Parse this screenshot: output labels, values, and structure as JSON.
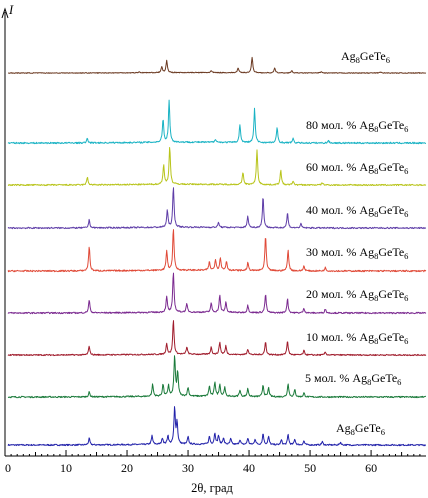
{
  "chart_data": {
    "type": "line",
    "title": "",
    "xlabel": "2θ, град",
    "ylabel": "I",
    "xlim": [
      0,
      69
    ],
    "x_ticks": [
      0,
      10,
      20,
      30,
      40,
      50,
      60
    ],
    "grid": false,
    "series": [
      {
        "name": "Ag8GeTe6",
        "label_text": "Ag",
        "label_parts": [
          "Ag",
          "8",
          "GeTe",
          "6"
        ],
        "color": "#2222aa",
        "peaks": [
          [
            13.8,
            0.16
          ],
          [
            24.1,
            0.22
          ],
          [
            25.8,
            0.16
          ],
          [
            26.7,
            0.22
          ],
          [
            27.8,
            0.9
          ],
          [
            28.2,
            0.55
          ],
          [
            30.0,
            0.18
          ],
          [
            33.5,
            0.2
          ],
          [
            34.4,
            0.28
          ],
          [
            35.0,
            0.22
          ],
          [
            35.8,
            0.16
          ],
          [
            37.0,
            0.14
          ],
          [
            38.5,
            0.12
          ],
          [
            39.8,
            0.16
          ],
          [
            41.0,
            0.14
          ],
          [
            42.3,
            0.28
          ],
          [
            43.2,
            0.2
          ],
          [
            45.3,
            0.12
          ],
          [
            46.4,
            0.26
          ],
          [
            47.5,
            0.14
          ],
          [
            49.0,
            0.1
          ],
          [
            52.0,
            0.08
          ],
          [
            55.0,
            0.07
          ]
        ]
      },
      {
        "name": "5 мол. % Ag8GeTe6",
        "label_parts": [
          "5 мол. % Ag",
          "8",
          "GeTe",
          "6"
        ],
        "color": "#1a7a3a",
        "peaks": [
          [
            13.8,
            0.12
          ],
          [
            24.2,
            0.3
          ],
          [
            25.9,
            0.3
          ],
          [
            26.8,
            0.28
          ],
          [
            27.8,
            1.0
          ],
          [
            28.3,
            0.6
          ],
          [
            30.0,
            0.22
          ],
          [
            33.5,
            0.26
          ],
          [
            34.4,
            0.36
          ],
          [
            35.2,
            0.3
          ],
          [
            36.0,
            0.22
          ],
          [
            38.5,
            0.16
          ],
          [
            39.8,
            0.2
          ],
          [
            42.3,
            0.3
          ],
          [
            43.2,
            0.22
          ],
          [
            46.4,
            0.34
          ],
          [
            47.5,
            0.18
          ],
          [
            49.0,
            0.1
          ]
        ]
      },
      {
        "name": "10 мол. % Ag8GeTe6",
        "label_parts": [
          "10 мол. % Ag",
          "8",
          "GeTe",
          "6"
        ],
        "color": "#a01c2c",
        "peaks": [
          [
            13.8,
            0.24
          ],
          [
            26.5,
            0.3
          ],
          [
            27.6,
            0.95
          ],
          [
            29.8,
            0.2
          ],
          [
            33.8,
            0.2
          ],
          [
            35.2,
            0.34
          ],
          [
            36.2,
            0.24
          ],
          [
            39.8,
            0.16
          ],
          [
            42.7,
            0.36
          ],
          [
            46.3,
            0.4
          ],
          [
            49.0,
            0.12
          ],
          [
            52.5,
            0.08
          ]
        ]
      },
      {
        "name": "20 мол. % Ag8GeTe6",
        "label_parts": [
          "20 мол. % Ag",
          "8",
          "GeTe",
          "6"
        ],
        "color": "#7b2a90",
        "peaks": [
          [
            13.8,
            0.32
          ],
          [
            26.5,
            0.38
          ],
          [
            27.6,
            1.0
          ],
          [
            29.8,
            0.2
          ],
          [
            33.8,
            0.22
          ],
          [
            35.2,
            0.42
          ],
          [
            36.2,
            0.26
          ],
          [
            39.8,
            0.18
          ],
          [
            42.7,
            0.46
          ],
          [
            46.3,
            0.36
          ],
          [
            49.0,
            0.12
          ],
          [
            52.5,
            0.1
          ]
        ]
      },
      {
        "name": "30 мол. % Ag8GeTe6",
        "label_parts": [
          "30 мол. % Ag",
          "8",
          "GeTe",
          "6"
        ],
        "color": "#e04a38",
        "peaks": [
          [
            13.8,
            0.58
          ],
          [
            26.5,
            0.45
          ],
          [
            27.6,
            1.0
          ],
          [
            33.5,
            0.2
          ],
          [
            34.5,
            0.26
          ],
          [
            35.3,
            0.3
          ],
          [
            36.3,
            0.22
          ],
          [
            39.8,
            0.18
          ],
          [
            42.7,
            0.82
          ],
          [
            46.4,
            0.5
          ],
          [
            49.0,
            0.12
          ],
          [
            52.5,
            0.08
          ]
        ]
      },
      {
        "name": "40 мол. % Ag8GeTe6",
        "label_parts": [
          "40 мол. % Ag",
          "8",
          "GeTe",
          "6"
        ],
        "color": "#5f3ea8",
        "peaks": [
          [
            13.8,
            0.2
          ],
          [
            26.6,
            0.42
          ],
          [
            27.6,
            1.0
          ],
          [
            35.0,
            0.12
          ],
          [
            39.8,
            0.28
          ],
          [
            42.3,
            0.78
          ],
          [
            46.3,
            0.38
          ],
          [
            48.5,
            0.1
          ]
        ]
      },
      {
        "name": "60 мол. % Ag8GeTe6",
        "label_parts": [
          "60 мол. % Ag",
          "8",
          "GeTe",
          "6"
        ],
        "color": "#b8c41a",
        "peaks": [
          [
            13.5,
            0.2
          ],
          [
            26.0,
            0.52
          ],
          [
            27.0,
            1.0
          ],
          [
            39.0,
            0.32
          ],
          [
            41.3,
            0.9
          ],
          [
            45.2,
            0.38
          ],
          [
            47.2,
            0.1
          ],
          [
            52.0,
            0.06
          ]
        ]
      },
      {
        "name": "80 мол. % Ag8GeTe6",
        "label_parts": [
          "80 мол. % Ag",
          "8",
          "GeTe",
          "6"
        ],
        "color": "#1ab3c4",
        "peaks": [
          [
            13.5,
            0.1
          ],
          [
            25.9,
            0.55
          ],
          [
            26.9,
            1.0
          ],
          [
            34.5,
            0.08
          ],
          [
            38.5,
            0.42
          ],
          [
            40.9,
            0.82
          ],
          [
            44.6,
            0.36
          ],
          [
            47.2,
            0.1
          ],
          [
            53.0,
            0.06
          ]
        ]
      },
      {
        "name": "Ag8GeTe6",
        "label_parts": [
          "Ag",
          "8",
          "GeTe",
          "6"
        ],
        "color": "#6b3a22",
        "peaks": [
          [
            22.0,
            0.04
          ],
          [
            25.7,
            0.25
          ],
          [
            26.5,
            0.55
          ],
          [
            33.8,
            0.08
          ],
          [
            38.2,
            0.22
          ],
          [
            40.5,
            0.7
          ],
          [
            44.2,
            0.22
          ],
          [
            47.0,
            0.1
          ],
          [
            51.8,
            0.06
          ],
          [
            61.5,
            0.05
          ]
        ]
      }
    ]
  }
}
